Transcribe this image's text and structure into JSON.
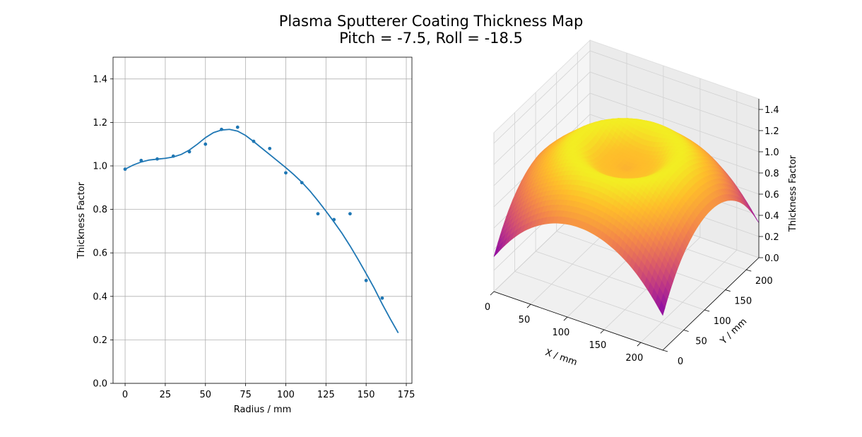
{
  "figure": {
    "title_line1": "Plasma Sputterer Coating Thickness Map",
    "title_line2": "Pitch = -7.5, Roll = -18.5"
  },
  "colors": {
    "line": "#1f77b4",
    "grid": "#b0b0b0",
    "pane": "#f2f2f2",
    "colormap": "plasma"
  },
  "chart_data": [
    {
      "type": "scatter",
      "title": "",
      "xlabel": "Radius / mm",
      "ylabel": "Thickness Factor",
      "xlim": [
        -7.5,
        178.5
      ],
      "ylim": [
        0.0,
        1.5
      ],
      "xticks": [
        "0",
        "25",
        "50",
        "75",
        "100",
        "125",
        "150",
        "175"
      ],
      "yticks": [
        "0.0",
        "0.2",
        "0.4",
        "0.6",
        "0.8",
        "1.0",
        "1.2",
        "1.4"
      ],
      "grid": true,
      "series": [
        {
          "kind": "points",
          "x": [
            0,
            10,
            20,
            30,
            40,
            50,
            60,
            70,
            80,
            90,
            100,
            110,
            120,
            130,
            140,
            150,
            160
          ],
          "y": [
            0.985,
            1.025,
            1.032,
            1.045,
            1.065,
            1.1,
            1.168,
            1.178,
            1.113,
            1.08,
            0.968,
            0.923,
            0.78,
            0.753,
            0.78,
            0.473,
            0.392
          ]
        },
        {
          "kind": "fit-line",
          "x": [
            0,
            5,
            10,
            15,
            20,
            25,
            30,
            35,
            40,
            45,
            50,
            55,
            60,
            65,
            70,
            75,
            80,
            85,
            90,
            95,
            100,
            105,
            110,
            115,
            120,
            125,
            130,
            135,
            140,
            145,
            150,
            155,
            160,
            165,
            170
          ],
          "y": [
            0.985,
            1.004,
            1.018,
            1.027,
            1.031,
            1.035,
            1.041,
            1.053,
            1.073,
            1.1,
            1.13,
            1.153,
            1.165,
            1.168,
            1.16,
            1.14,
            1.112,
            1.082,
            1.052,
            1.022,
            0.992,
            0.96,
            0.925,
            0.885,
            0.84,
            0.792,
            0.742,
            0.69,
            0.632,
            0.57,
            0.505,
            0.438,
            0.365,
            0.297,
            0.232
          ]
        }
      ]
    },
    {
      "type": "surface",
      "xlabel": "X / mm",
      "ylabel": "Y / mm",
      "zlabel": "Thickness Factor",
      "xlim": [
        0,
        230
      ],
      "ylim": [
        0,
        230
      ],
      "zlim": [
        0.0,
        1.5
      ],
      "xticks": [
        "0",
        "50",
        "100",
        "150",
        "200"
      ],
      "yticks": [
        "0",
        "50",
        "100",
        "150",
        "200"
      ],
      "zticks": [
        "0.0",
        "0.2",
        "0.4",
        "0.6",
        "0.8",
        "1.0",
        "1.2",
        "1.4"
      ],
      "colormap": "plasma",
      "center": [
        115,
        115
      ],
      "profile": "thickness factor vs radius from the fit above"
    }
  ]
}
